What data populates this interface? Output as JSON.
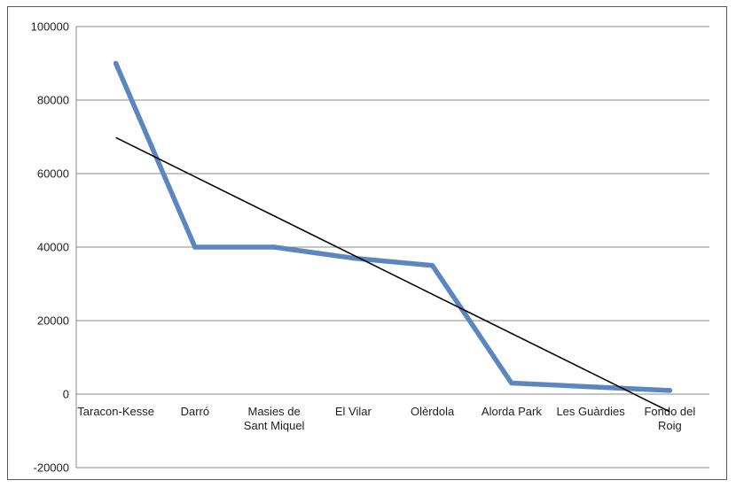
{
  "chart_data": {
    "type": "line",
    "categories": [
      "Taracon-Kesse",
      "Darró",
      "Masies de Sant Miquel",
      "El Vilar",
      "Olèrdola",
      "Alorda Park",
      "Les Guàrdies",
      "Fondo del Roig"
    ],
    "category_lines": [
      [
        "Taracon-Kesse"
      ],
      [
        "Darró"
      ],
      [
        "Masies de",
        "Sant Miquel"
      ],
      [
        "El Vilar"
      ],
      [
        "Olèrdola"
      ],
      [
        "Alorda Park"
      ],
      [
        "Les Guàrdies"
      ],
      [
        "Fondo del",
        "Roig"
      ]
    ],
    "series": [
      {
        "values": [
          90000,
          40000,
          40000,
          37000,
          35000,
          3000,
          2000,
          1000
        ],
        "color": "#5b87be"
      }
    ],
    "trendline": {
      "type": "linear",
      "start": 69800,
      "end": -4800,
      "color": "#000000"
    },
    "ylim": [
      -20000,
      100000
    ],
    "yticks": [
      -20000,
      0,
      20000,
      40000,
      60000,
      80000,
      100000
    ],
    "ytick_labels": [
      "-20000",
      "0",
      "20000",
      "40000",
      "60000",
      "80000",
      "100000"
    ],
    "grid": true,
    "legend": "none"
  }
}
